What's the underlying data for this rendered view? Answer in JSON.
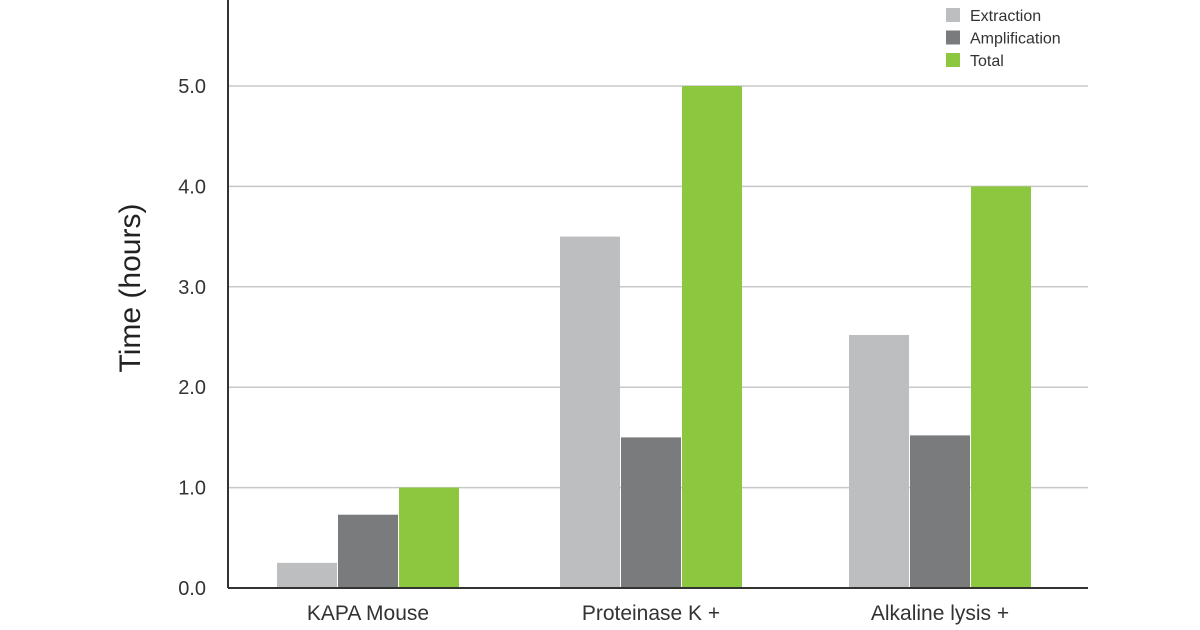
{
  "chart_data": {
    "type": "bar",
    "title": "",
    "xlabel": "",
    "ylabel": "Time (hours)",
    "ylim": [
      0,
      5.5
    ],
    "yticks": [
      "0.0",
      "1.0",
      "2.0",
      "3.0",
      "4.0",
      "5.0"
    ],
    "grid": true,
    "legend_position": "top-right",
    "categories": [
      "KAPA Mouse",
      "Proteinase K +",
      "Alkaline lysis +"
    ],
    "series": [
      {
        "name": "Extraction",
        "color": "#bcbec0",
        "values": [
          0.25,
          3.5,
          2.52
        ]
      },
      {
        "name": "Amplification",
        "color": "#7a7b7d",
        "values": [
          0.73,
          1.5,
          1.52
        ]
      },
      {
        "name": "Total",
        "color": "#8dc63f",
        "values": [
          1.0,
          5.0,
          4.0
        ]
      }
    ]
  }
}
